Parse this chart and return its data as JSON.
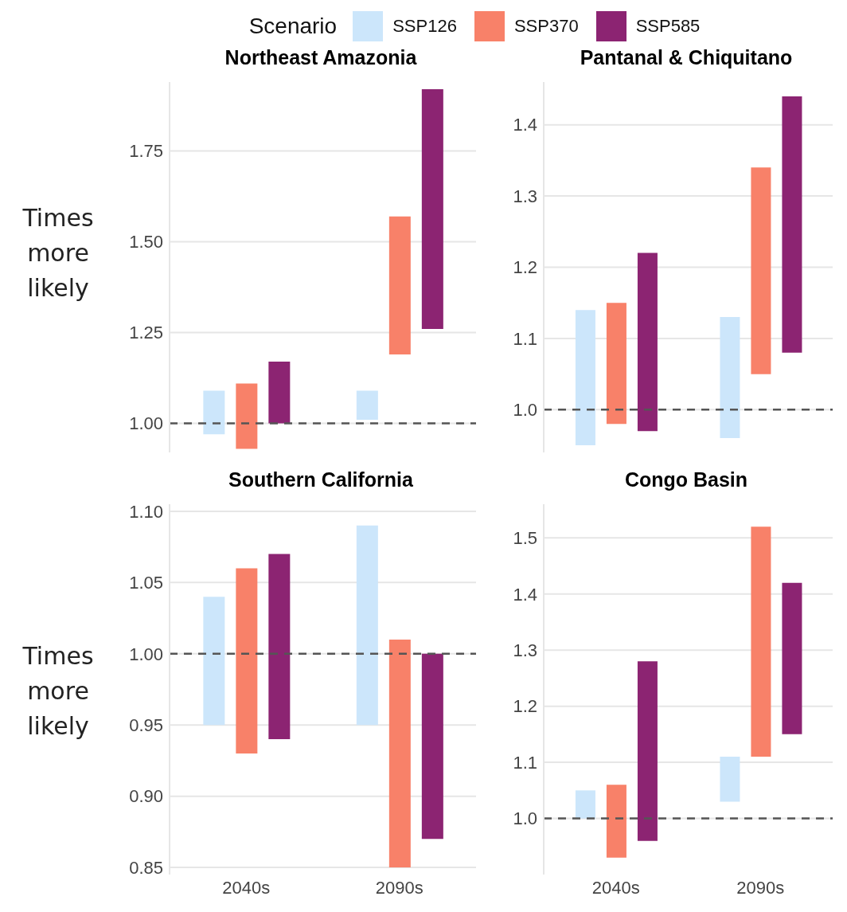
{
  "chart_data": [
    {
      "type": "bar",
      "title": "Northeast Amazonia",
      "ylabel": "Times more likely",
      "legend_title": "Scenario",
      "legend": "top",
      "grid": "y",
      "tick_labels": "y",
      "categories": [
        null,
        null
      ],
      "series": [
        {
          "name": "SSP126",
          "color": "#cce6fb",
          "base": [
            0.97,
            1.01
          ],
          "values": [
            0.12,
            0.08
          ]
        },
        {
          "name": "SSP370",
          "color": "#f88169",
          "base": [
            0.93,
            1.19
          ],
          "values": [
            0.18,
            0.38
          ]
        },
        {
          "name": "SSP585",
          "color": "#8c2472",
          "base": [
            1.0,
            1.26
          ],
          "values": [
            0.17,
            0.66
          ]
        }
      ],
      "ylim": [
        0.92,
        1.94
      ],
      "yticks": [
        {
          "value": 1,
          "label": "1.00"
        },
        1.25,
        {
          "value": 1.5,
          "label": "1.50"
        },
        1.75
      ],
      "ref_lines": [
        {
          "axis": "y",
          "value": 1,
          "color": "#555555",
          "line_style": "dashed"
        }
      ]
    },
    {
      "type": "bar",
      "title": "Pantanal & Chiquitano",
      "grid": "y",
      "tick_labels": "y",
      "categories": [
        null,
        null
      ],
      "series": [
        {
          "color": "#cce6fb",
          "base": [
            0.95,
            0.96
          ],
          "values": [
            0.19,
            0.17
          ]
        },
        {
          "color": "#f88169",
          "base": [
            0.98,
            1.05
          ],
          "values": [
            0.17,
            0.29
          ]
        },
        {
          "color": "#8c2472",
          "base": [
            0.97,
            1.08
          ],
          "values": [
            0.25,
            0.36
          ]
        }
      ],
      "ylim": [
        0.94,
        1.46
      ],
      "yticks": [
        {
          "value": 1,
          "label": "1.0"
        },
        1.1,
        1.2,
        1.3,
        1.4
      ],
      "ref_lines": [
        {
          "axis": "y",
          "value": 1,
          "color": "#555555",
          "line_style": "dashed"
        }
      ]
    },
    {
      "type": "bar",
      "title": "Southern California",
      "ylabel": "Times more likely",
      "grid": "y",
      "categories": [
        "2040s",
        "2090s"
      ],
      "series": [
        {
          "color": "#cce6fb",
          "base": [
            0.95,
            0.95
          ],
          "values": [
            0.09,
            0.14
          ]
        },
        {
          "color": "#f88169",
          "base": [
            0.93,
            0.85
          ],
          "values": [
            0.13,
            0.16
          ]
        },
        {
          "color": "#8c2472",
          "base": [
            0.94,
            0.87
          ],
          "values": [
            0.13,
            0.13
          ]
        }
      ],
      "ylim": [
        0.845,
        1.105
      ],
      "yticks": [
        0.85,
        {
          "value": 0.9,
          "label": "0.90"
        },
        0.95,
        {
          "value": 1,
          "label": "1.00"
        },
        1.05,
        {
          "value": 1.1,
          "label": "1.10"
        }
      ],
      "ref_lines": [
        {
          "axis": "y",
          "value": 1,
          "color": "#555555",
          "line_style": "dashed"
        }
      ]
    },
    {
      "type": "bar",
      "title": "Congo Basin",
      "grid": "y",
      "categories": [
        "2040s",
        "2090s"
      ],
      "series": [
        {
          "color": "#cce6fb",
          "base": [
            1.0,
            1.03
          ],
          "values": [
            0.05,
            0.08
          ]
        },
        {
          "color": "#f88169",
          "base": [
            0.93,
            1.11
          ],
          "values": [
            0.13,
            0.41
          ]
        },
        {
          "color": "#8c2472",
          "base": [
            0.96,
            1.15
          ],
          "values": [
            0.32,
            0.27
          ]
        }
      ],
      "ylim": [
        0.9,
        1.56
      ],
      "yticks": [
        {
          "value": 1,
          "label": "1.0"
        },
        1.1,
        1.2,
        1.3,
        1.4,
        1.5
      ],
      "ref_lines": [
        {
          "axis": "y",
          "value": 1,
          "color": "#555555",
          "line_style": "dashed"
        }
      ]
    }
  ]
}
